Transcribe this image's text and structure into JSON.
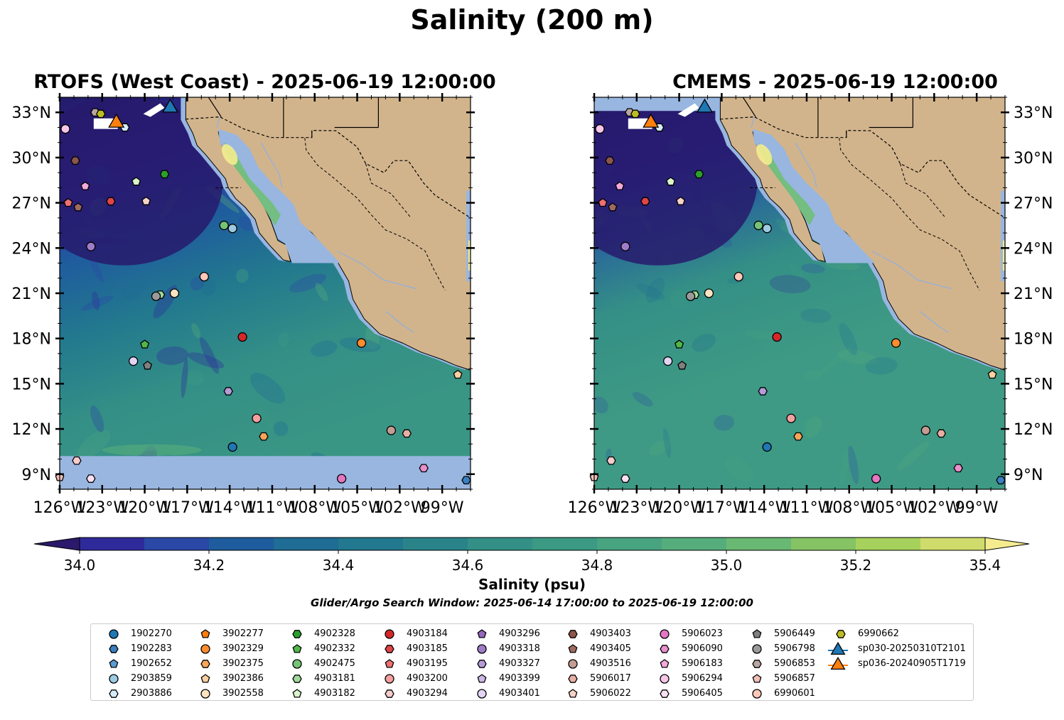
{
  "title": "Salinity (200 m)",
  "maps": [
    {
      "title": "RTOFS (West Coast) - 2025-06-19 12:00:00",
      "lat_labels_side": "left"
    },
    {
      "title": "CMEMS - 2025-06-19 12:00:00",
      "lat_labels_side": "right"
    }
  ],
  "axes": {
    "lat_ticks": [
      "9°N",
      "12°N",
      "15°N",
      "18°N",
      "21°N",
      "24°N",
      "27°N",
      "30°N",
      "33°N"
    ],
    "lat_values": [
      9,
      12,
      15,
      18,
      21,
      24,
      27,
      30,
      33
    ],
    "lon_ticks": [
      "126°W",
      "123°W",
      "120°W",
      "117°W",
      "114°W",
      "111°W",
      "108°W",
      "105°W",
      "102°W",
      "99°W"
    ],
    "lon_values": [
      -126,
      -123,
      -120,
      -117,
      -114,
      -111,
      -108,
      -105,
      -102,
      -99
    ],
    "lon_range": [
      -126,
      -97
    ],
    "lat_range": [
      8,
      34
    ]
  },
  "colorbar": {
    "label": "Salinity (psu)",
    "ticks": [
      "34.0",
      "34.2",
      "34.4",
      "34.6",
      "34.8",
      "35.0",
      "35.2",
      "35.4"
    ],
    "range": [
      34.0,
      35.4
    ],
    "extend": "both",
    "colors": [
      "#2b1a6b",
      "#2f2a9a",
      "#2a48a6",
      "#1f5c9e",
      "#1f6c94",
      "#22788e",
      "#2a8389",
      "#348f86",
      "#3c9a84",
      "#48a381",
      "#56ad7c",
      "#69b873",
      "#85c365",
      "#a7d15d",
      "#cfdc6c",
      "#f4ec8f"
    ]
  },
  "search_window": "Glider/Argo Search Window: 2025-06-14 17:00:00 to 2025-06-19 12:00:00",
  "colors": {
    "land": "#d2b48c",
    "shelf": "#98b6e0",
    "river": "#9bb0d0"
  },
  "legend": [
    {
      "id": "1902270",
      "shape": "circle",
      "color": "#1f77b4",
      "lon": -113.8,
      "lat": 10.8
    },
    {
      "id": "1902283",
      "shape": "hexagon",
      "color": "#3a7fc0",
      "lon": -97.3,
      "lat": 8.6
    },
    {
      "id": "1902652",
      "shape": "pentagon",
      "color": "#5a9bd0",
      "lon": null,
      "lat": null
    },
    {
      "id": "2903859",
      "shape": "circle",
      "color": "#9ecae1",
      "lon": -113.8,
      "lat": 25.3
    },
    {
      "id": "2903886",
      "shape": "hexagon",
      "color": "#d6eaf8",
      "lon": -121.4,
      "lat": 32.0
    },
    {
      "id": "3902277",
      "shape": "pentagon",
      "color": "#ff7f0e",
      "lon": null,
      "lat": null
    },
    {
      "id": "3902329",
      "shape": "circle",
      "color": "#ff8c2e",
      "lon": -104.7,
      "lat": 17.7
    },
    {
      "id": "3902375",
      "shape": "hexagon",
      "color": "#f9a55a",
      "lon": -111.6,
      "lat": 11.5
    },
    {
      "id": "3902386",
      "shape": "pentagon",
      "color": "#fdd0a2",
      "lon": -97.9,
      "lat": 15.6
    },
    {
      "id": "3902558",
      "shape": "circle",
      "color": "#fde3c0",
      "lon": -117.9,
      "lat": 21.0
    },
    {
      "id": "4902328",
      "shape": "hexagon",
      "color": "#2ca02c",
      "lon": -118.6,
      "lat": 28.9
    },
    {
      "id": "4902332",
      "shape": "pentagon",
      "color": "#50b84a",
      "lon": -120.0,
      "lat": 17.6
    },
    {
      "id": "4902475",
      "shape": "circle",
      "color": "#74c476",
      "lon": -114.4,
      "lat": 25.5
    },
    {
      "id": "4903181",
      "shape": "hexagon",
      "color": "#a1d99b",
      "lon": -118.9,
      "lat": 20.9
    },
    {
      "id": "4903182",
      "shape": "pentagon",
      "color": "#d9f5c9",
      "lon": -120.6,
      "lat": 28.4
    },
    {
      "id": "4903184",
      "shape": "circle",
      "color": "#d62728",
      "lon": -113.1,
      "lat": 18.1
    },
    {
      "id": "4903185",
      "shape": "hexagon",
      "color": "#e04547",
      "lon": -122.4,
      "lat": 27.1
    },
    {
      "id": "4903195",
      "shape": "pentagon",
      "color": "#f07070",
      "lon": -125.4,
      "lat": 27.0
    },
    {
      "id": "4903200",
      "shape": "circle",
      "color": "#f4a0a0",
      "lon": -112.1,
      "lat": 12.7
    },
    {
      "id": "4903294",
      "shape": "hexagon",
      "color": "#f8cccc",
      "lon": -124.8,
      "lat": 9.9
    },
    {
      "id": "4903296",
      "shape": "pentagon",
      "color": "#9467bd",
      "lon": null,
      "lat": null
    },
    {
      "id": "4903318",
      "shape": "circle",
      "color": "#a07cc8",
      "lon": -123.8,
      "lat": 24.1
    },
    {
      "id": "4903327",
      "shape": "hexagon",
      "color": "#b69bd8",
      "lon": -114.1,
      "lat": 14.5
    },
    {
      "id": "4903399",
      "shape": "pentagon",
      "color": "#cdb8e8",
      "lon": null,
      "lat": null
    },
    {
      "id": "4903401",
      "shape": "circle",
      "color": "#e2d4f4",
      "lon": -120.8,
      "lat": 16.5
    },
    {
      "id": "4903403",
      "shape": "hexagon",
      "color": "#8c564b",
      "lon": -124.9,
      "lat": 29.8
    },
    {
      "id": "4903405",
      "shape": "pentagon",
      "color": "#a06b5f",
      "lon": -124.7,
      "lat": 26.7
    },
    {
      "id": "4903516",
      "shape": "circle",
      "color": "#c49c94",
      "lon": -102.6,
      "lat": 11.9
    },
    {
      "id": "5906017",
      "shape": "hexagon",
      "color": "#e8b0a4",
      "lon": -101.5,
      "lat": 11.7
    },
    {
      "id": "5906022",
      "shape": "pentagon",
      "color": "#f6d3c8",
      "lon": -119.9,
      "lat": 27.1
    },
    {
      "id": "5906023",
      "shape": "circle",
      "color": "#e377c2",
      "lon": -106.1,
      "lat": 8.7
    },
    {
      "id": "5906090",
      "shape": "hexagon",
      "color": "#e88fcc",
      "lon": -100.3,
      "lat": 9.4
    },
    {
      "id": "5906183",
      "shape": "pentagon",
      "color": "#f4a8dc",
      "lon": -124.2,
      "lat": 28.1
    },
    {
      "id": "5906294",
      "shape": "circle",
      "color": "#f8c6e8",
      "lon": -125.6,
      "lat": 31.9
    },
    {
      "id": "5906405",
      "shape": "hexagon",
      "color": "#fce0f2",
      "lon": -123.8,
      "lat": 8.7
    },
    {
      "id": "5906449",
      "shape": "pentagon",
      "color": "#7f7f7f",
      "lon": -119.8,
      "lat": 16.2
    },
    {
      "id": "5906798",
      "shape": "circle",
      "color": "#9a9a9a",
      "lon": -119.2,
      "lat": 20.8
    },
    {
      "id": "5906853",
      "shape": "hexagon",
      "color": "#b8a79f",
      "lon": -123.5,
      "lat": 33.0
    },
    {
      "id": "5906857",
      "shape": "pentagon",
      "color": "#f0c0b8",
      "lon": -126.0,
      "lat": 8.8
    },
    {
      "id": "6990601",
      "shape": "circle",
      "color": "#ffc8b8",
      "lon": -115.8,
      "lat": 22.1
    },
    {
      "id": "6990662",
      "shape": "hexagon",
      "color": "#bcbd22",
      "lon": -123.1,
      "lat": 32.9
    },
    {
      "id": "sp030-20250310T2101",
      "shape": "triangle",
      "color": "#1f77b4",
      "lon": -118.2,
      "lat": 33.3
    },
    {
      "id": "sp036-20240905T1719",
      "shape": "triangle",
      "color": "#ff7f0e",
      "lon": -122.0,
      "lat": 32.3
    }
  ]
}
